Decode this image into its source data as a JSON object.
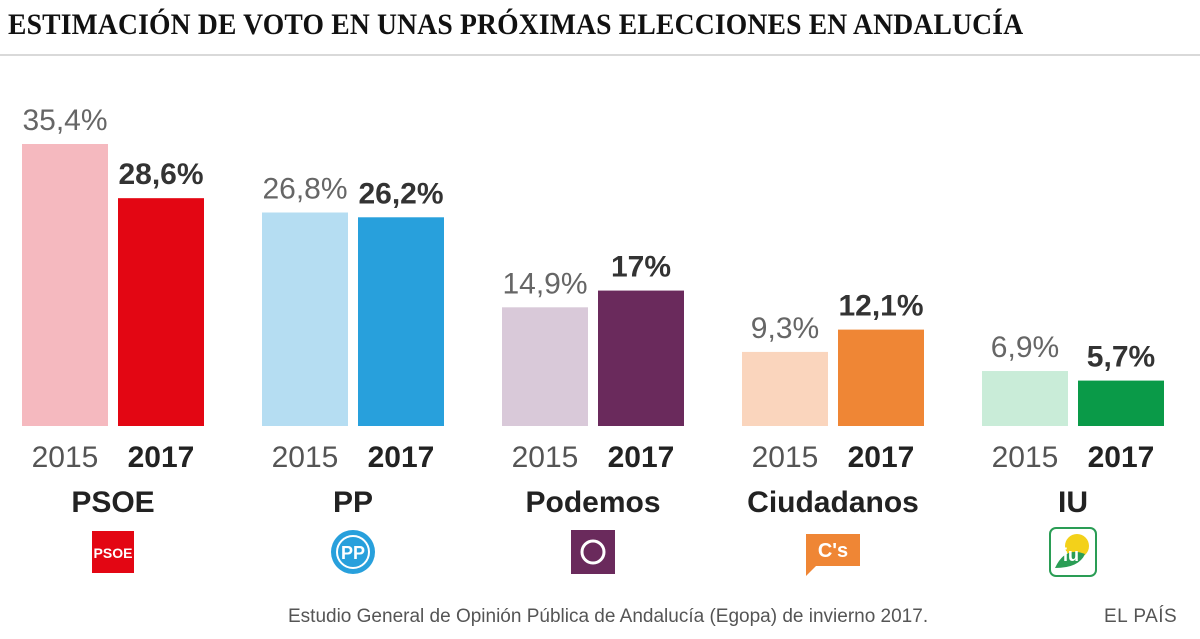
{
  "title": "ESTIMACIÓN DE VOTO EN UNAS PRÓXIMAS ELECCIONES EN ANDALUCÍA",
  "source": "Estudio General de Opinión Pública de Andalucía (Egopa) de invierno 2017.",
  "credit": "EL PAÍS",
  "chart_data": {
    "type": "bar",
    "title": "ESTIMACIÓN DE VOTO EN UNAS PRÓXIMAS ELECCIONES EN ANDALUCÍA",
    "xlabel": "",
    "ylabel": "",
    "ylim": [
      0,
      40
    ],
    "unit": "%",
    "years": [
      "2015",
      "2017"
    ],
    "categories": [
      "PSOE",
      "PP",
      "Podemos",
      "Ciudadanos",
      "IU"
    ],
    "series": [
      {
        "name": "2015",
        "values": [
          35.4,
          26.8,
          14.9,
          9.3,
          6.9
        ],
        "labels": [
          "35,4%",
          "26,8%",
          "14,9%",
          "9,3%",
          "6,9%"
        ]
      },
      {
        "name": "2017",
        "values": [
          28.6,
          26.2,
          17.0,
          12.1,
          5.7
        ],
        "labels": [
          "28,6%",
          "26,2%",
          "17%",
          "12,1%",
          "5,7%"
        ]
      }
    ],
    "parties": [
      {
        "name": "PSOE",
        "color_2015": "#f5b9bf",
        "color_2017": "#e30613",
        "logo": "psoe-logo",
        "logo_text": "PSOE"
      },
      {
        "name": "PP",
        "color_2015": "#b5ddf2",
        "color_2017": "#28a0dc",
        "logo": "pp-logo",
        "logo_text": "PP"
      },
      {
        "name": "Podemos",
        "color_2015": "#d9c9d9",
        "color_2017": "#6a2a5c",
        "logo": "podemos-logo",
        "logo_text": ""
      },
      {
        "name": "Ciudadanos",
        "color_2015": "#fad5bd",
        "color_2017": "#ef8635",
        "logo": "ciudadanos-logo",
        "logo_text": "C's"
      },
      {
        "name": "IU",
        "color_2015": "#c9ecd8",
        "color_2017": "#0a9a48",
        "logo": "iu-logo",
        "logo_text": "iu"
      }
    ]
  }
}
